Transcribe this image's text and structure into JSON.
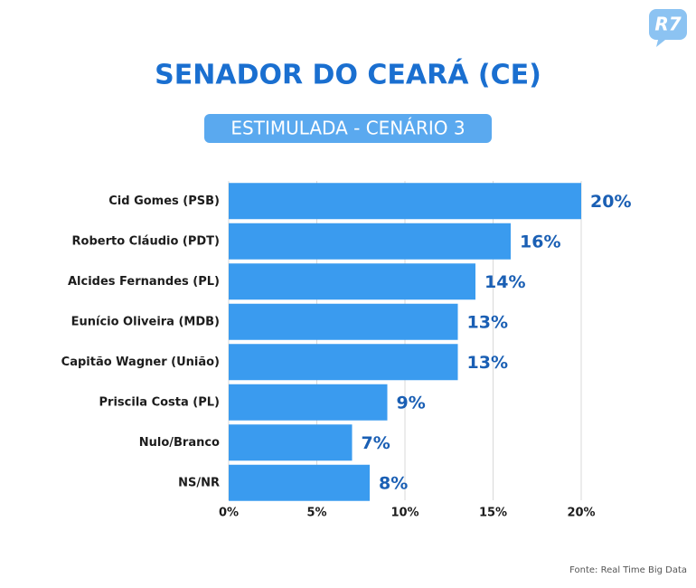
{
  "chart_data": {
    "type": "bar",
    "orientation": "horizontal",
    "logo": "R7",
    "title": "SENADOR DO CEARÁ (CE)",
    "subtitle": "ESTIMULADA - CENÁRIO 3",
    "source": "Fonte: Real Time Big Data",
    "categories": [
      "Cid Gomes (PSB)",
      "Roberto Cláudio (PDT)",
      "Alcides Fernandes (PL)",
      "Eunício Oliveira (MDB)",
      "Capitão Wagner (União)",
      "Priscila Costa (PL)",
      "Nulo/Branco",
      "NS/NR"
    ],
    "values": [
      20,
      16,
      14,
      13,
      13,
      9,
      7,
      8
    ],
    "value_labels": [
      "20%",
      "16%",
      "14%",
      "13%",
      "13%",
      "9%",
      "7%",
      "8%"
    ],
    "color": "#3a9bef",
    "xlim": [
      0,
      20
    ],
    "xticks": [
      {
        "value": 0,
        "label": "0%"
      },
      {
        "value": 5,
        "label": "5%"
      },
      {
        "value": 10,
        "label": "10%"
      },
      {
        "value": 15,
        "label": "15%"
      },
      {
        "value": 20,
        "label": "20%"
      }
    ],
    "grid": true
  }
}
